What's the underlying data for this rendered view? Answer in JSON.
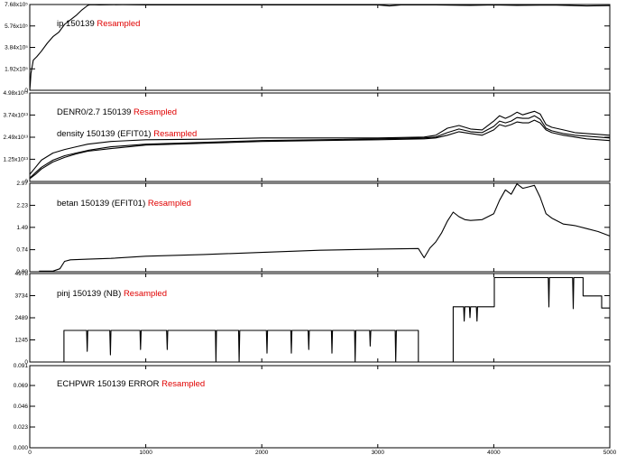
{
  "colors": {
    "trace": "#000000",
    "resampled": "#e00000",
    "frame": "#000000"
  },
  "x_axis": {
    "min": 0,
    "max": 5000,
    "ticks": [
      0,
      1000,
      2000,
      3000,
      4000,
      5000
    ],
    "tick_labels": [
      "0",
      "1000",
      "2000",
      "3000",
      "4000",
      "5000"
    ]
  },
  "chart_data": [
    {
      "type": "line",
      "title_parts": [
        {
          "text": "ip  150139 ",
          "red": false
        },
        {
          "text": "Resampled",
          "red": true
        }
      ],
      "yticks": [
        0,
        1.92,
        3.84,
        5.76,
        7.68
      ],
      "ytick_labels": [
        "0",
        "1.92x10⁵",
        "3.84x10⁵",
        "5.76x10⁵",
        "7.68x10⁵"
      ],
      "ylim": [
        0,
        7.68
      ],
      "series": [
        {
          "x": [
            0,
            5,
            10,
            30,
            60,
            100,
            150,
            200,
            250,
            300,
            350,
            400,
            450,
            500,
            520,
            600,
            800,
            1000,
            1500,
            2000,
            2500,
            3000,
            3100,
            3200,
            3500,
            3800,
            4000,
            4200,
            4500,
            4800,
            5000
          ],
          "y": [
            0,
            0.6,
            1.5,
            2.7,
            3.0,
            3.5,
            4.2,
            4.8,
            5.2,
            5.9,
            6.3,
            6.7,
            7.2,
            7.6,
            7.66,
            7.65,
            7.66,
            7.65,
            7.65,
            7.65,
            7.65,
            7.65,
            7.55,
            7.64,
            7.64,
            7.6,
            7.64,
            7.6,
            7.63,
            7.55,
            7.58
          ]
        }
      ]
    },
    {
      "type": "line",
      "title_parts": [
        {
          "text": "DENR0/2.7  150139 ",
          "red": false
        },
        {
          "text": "Resampled",
          "red": true
        }
      ],
      "title2_parts": [
        {
          "text": "density  150139 (EFIT01) ",
          "red": false
        },
        {
          "text": "Resampled",
          "red": true
        }
      ],
      "yticks": [
        0,
        1.25,
        2.49,
        3.74,
        4.98
      ],
      "ytick_labels": [
        "0",
        "1.25x10¹³",
        "2.49x10¹³",
        "3.74x10¹³",
        "4.98x10¹³"
      ],
      "ylim": [
        0,
        4.98
      ],
      "series": [
        {
          "x": [
            0,
            50,
            100,
            200,
            300,
            400,
            500,
            700,
            1000,
            1500,
            2000,
            2500,
            3000,
            3400,
            3500,
            3600,
            3700,
            3800,
            3900,
            4000,
            4050,
            4100,
            4150,
            4200,
            4250,
            4300,
            4350,
            4400,
            4450,
            4500,
            4600,
            4700,
            4800,
            5000
          ],
          "y": [
            0.4,
            0.8,
            1.2,
            1.6,
            1.8,
            1.95,
            2.1,
            2.25,
            2.35,
            2.38,
            2.45,
            2.45,
            2.45,
            2.5,
            2.6,
            3.0,
            3.15,
            2.95,
            2.9,
            3.4,
            3.7,
            3.55,
            3.7,
            3.9,
            3.75,
            3.85,
            3.95,
            3.8,
            3.2,
            3.05,
            2.9,
            2.75,
            2.7,
            2.6
          ]
        },
        {
          "x": [
            0,
            50,
            100,
            200,
            300,
            400,
            500,
            700,
            1000,
            1500,
            2000,
            2500,
            3000,
            3400,
            3500,
            3600,
            3700,
            3800,
            3900,
            4000,
            4050,
            4100,
            4150,
            4200,
            4250,
            4300,
            4350,
            4400,
            4450,
            4500,
            4600,
            4700,
            4800,
            5000
          ],
          "y": [
            0.2,
            0.5,
            0.8,
            1.2,
            1.45,
            1.6,
            1.75,
            1.95,
            2.1,
            2.2,
            2.3,
            2.35,
            2.4,
            2.45,
            2.5,
            2.75,
            2.95,
            2.8,
            2.75,
            3.1,
            3.4,
            3.3,
            3.4,
            3.6,
            3.55,
            3.55,
            3.7,
            3.5,
            3.0,
            2.85,
            2.7,
            2.6,
            2.55,
            2.45
          ]
        },
        {
          "x": [
            0,
            50,
            100,
            200,
            300,
            400,
            500,
            700,
            1000,
            1500,
            2000,
            2500,
            3000,
            3400,
            3500,
            3600,
            3700,
            3800,
            3900,
            4000,
            4050,
            4100,
            4150,
            4200,
            4250,
            4300,
            4350,
            4400,
            4450,
            4500,
            4600,
            4700,
            4800,
            5000
          ],
          "y": [
            0.15,
            0.4,
            0.7,
            1.1,
            1.35,
            1.55,
            1.7,
            1.85,
            2.05,
            2.15,
            2.25,
            2.3,
            2.35,
            2.4,
            2.45,
            2.6,
            2.8,
            2.7,
            2.6,
            2.9,
            3.2,
            3.1,
            3.2,
            3.35,
            3.3,
            3.3,
            3.45,
            3.3,
            2.9,
            2.75,
            2.6,
            2.5,
            2.4,
            2.3
          ]
        }
      ]
    },
    {
      "type": "line",
      "title_parts": [
        {
          "text": "betan  150139 (EFIT01) ",
          "red": false
        },
        {
          "text": "Resampled",
          "red": true
        }
      ],
      "yticks": [
        0,
        0.74,
        1.49,
        2.23,
        2.97
      ],
      "ytick_labels": [
        "0.00",
        "0.74",
        "1.49",
        "2.23",
        "2.97"
      ],
      "ylim": [
        0,
        2.97
      ],
      "series": [
        {
          "x": [
            80,
            200,
            260,
            300,
            350,
            500,
            700,
            1000,
            1500,
            2000,
            2500,
            3000,
            3350,
            3400,
            3450,
            3500,
            3550,
            3600,
            3650,
            3700,
            3750,
            3800,
            3900,
            4000,
            4050,
            4100,
            4150,
            4200,
            4250,
            4300,
            4350,
            4400,
            4450,
            4500,
            4600,
            4700,
            4800,
            4900,
            5000
          ],
          "y": [
            0.02,
            0.02,
            0.1,
            0.35,
            0.4,
            0.42,
            0.45,
            0.52,
            0.58,
            0.65,
            0.72,
            0.76,
            0.78,
            0.47,
            0.8,
            1.0,
            1.3,
            1.7,
            2.0,
            1.85,
            1.75,
            1.72,
            1.75,
            1.95,
            2.4,
            2.75,
            2.6,
            2.95,
            2.8,
            2.85,
            2.9,
            2.5,
            1.95,
            1.8,
            1.6,
            1.55,
            1.45,
            1.35,
            1.2
          ]
        }
      ]
    },
    {
      "type": "line",
      "title_parts": [
        {
          "text": "pinj  150139 (NB) ",
          "red": false
        },
        {
          "text": "Resampled",
          "red": true
        }
      ],
      "yticks": [
        0,
        1245,
        2489,
        3734,
        4978
      ],
      "ytick_labels": [
        "0",
        "1245",
        "2489",
        "3734",
        "4978"
      ],
      "ylim": [
        0,
        4978
      ],
      "series": [
        {
          "x": [
            0,
            295,
            295,
            490,
            495,
            500,
            690,
            695,
            700,
            950,
            955,
            960,
            1180,
            1185,
            1190,
            1600,
            1605,
            1610,
            1800,
            1805,
            1810,
            2040,
            2045,
            2050,
            2250,
            2255,
            2260,
            2400,
            2405,
            2410,
            2600,
            2605,
            2610,
            2800,
            2805,
            2810,
            2930,
            2935,
            2940,
            3150,
            3155,
            3160,
            3350,
            3350,
            3650,
            3650,
            3740,
            3745,
            3750,
            3790,
            3795,
            3800,
            3850,
            3855,
            3860,
            4005,
            4005,
            4470,
            4475,
            4480,
            4680,
            4685,
            4690,
            4770,
            4770,
            4930,
            4930,
            5000
          ],
          "y": [
            0,
            0,
            1780,
            1780,
            600,
            1780,
            1780,
            400,
            1780,
            1780,
            700,
            1780,
            1780,
            700,
            1780,
            1780,
            0,
            1780,
            1780,
            0,
            1780,
            1780,
            500,
            1780,
            1780,
            500,
            1780,
            1780,
            700,
            1780,
            1780,
            500,
            1780,
            1780,
            0,
            1780,
            1780,
            900,
            1780,
            1780,
            0,
            1780,
            1780,
            0,
            0,
            3110,
            3110,
            2300,
            3110,
            3110,
            2500,
            3110,
            3110,
            2300,
            3110,
            3110,
            4750,
            4750,
            3100,
            4750,
            4750,
            3000,
            4750,
            4750,
            3720,
            3720,
            3040,
            3040
          ]
        }
      ]
    },
    {
      "type": "line",
      "title_parts": [
        {
          "text": "ECHPWR  150139 ERROR ",
          "red": false
        },
        {
          "text": "Resampled",
          "red": true
        }
      ],
      "yticks": [
        0,
        0.023,
        0.046,
        0.069,
        0.091
      ],
      "ytick_labels": [
        "0.000",
        "0.023",
        "0.046",
        "0.069",
        "0.091"
      ],
      "ylim": [
        0,
        0.091
      ],
      "series": []
    }
  ]
}
